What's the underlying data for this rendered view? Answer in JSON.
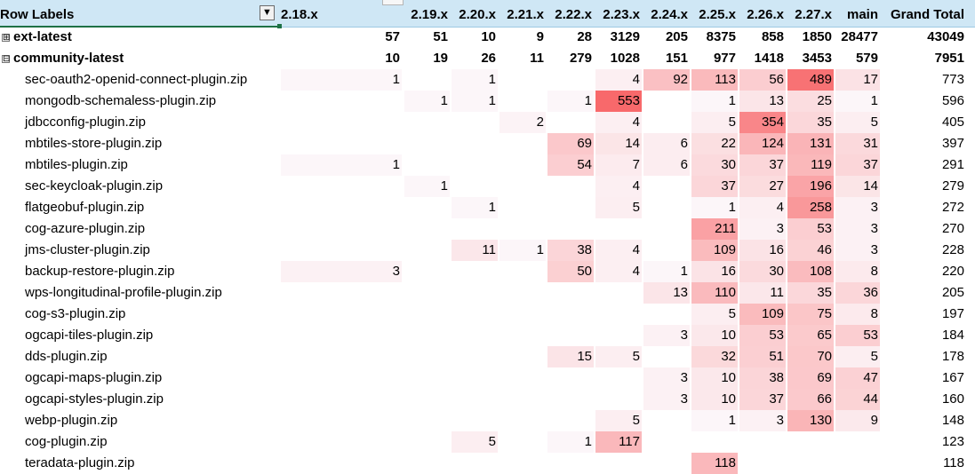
{
  "header": {
    "row_labels": "Row Labels",
    "filter_icon": "filter-sort-icon",
    "columns": [
      "2.18.x",
      "2.19.x",
      "2.20.x",
      "2.21.x",
      "2.22.x",
      "2.23.x",
      "2.24.x",
      "2.25.x",
      "2.26.x",
      "2.27.x",
      "main",
      "Grand Total"
    ]
  },
  "groups": [
    {
      "label": "ext-latest",
      "expander": "⊞",
      "values": [
        "57",
        "51",
        "10",
        "9",
        "28",
        "3129",
        "205",
        "8375",
        "858",
        "1850",
        "28477",
        "43049"
      ]
    },
    {
      "label": "community-latest",
      "expander": "⊟",
      "values": [
        "10",
        "19",
        "26",
        "11",
        "279",
        "1028",
        "151",
        "977",
        "1418",
        "3453",
        "579",
        "7951"
      ]
    }
  ],
  "rows": [
    {
      "label": "sec-oauth2-openid-connect-plugin.zip",
      "values": [
        "1",
        "",
        "1",
        "",
        "",
        "4",
        "92",
        "113",
        "56",
        "489",
        "17",
        "773"
      ]
    },
    {
      "label": "mongodb-schemaless-plugin.zip",
      "values": [
        "",
        "1",
        "1",
        "",
        "1",
        "553",
        "",
        "1",
        "13",
        "25",
        "1",
        "596"
      ]
    },
    {
      "label": "jdbcconfig-plugin.zip",
      "values": [
        "",
        "",
        "",
        "2",
        "",
        "4",
        "",
        "5",
        "354",
        "35",
        "5",
        "405"
      ]
    },
    {
      "label": "mbtiles-store-plugin.zip",
      "values": [
        "",
        "",
        "",
        "",
        "69",
        "14",
        "6",
        "22",
        "124",
        "131",
        "31",
        "397"
      ]
    },
    {
      "label": "mbtiles-plugin.zip",
      "values": [
        "1",
        "",
        "",
        "",
        "54",
        "7",
        "6",
        "30",
        "37",
        "119",
        "37",
        "291"
      ]
    },
    {
      "label": "sec-keycloak-plugin.zip",
      "values": [
        "",
        "1",
        "",
        "",
        "",
        "4",
        "",
        "37",
        "27",
        "196",
        "14",
        "279"
      ]
    },
    {
      "label": "flatgeobuf-plugin.zip",
      "values": [
        "",
        "",
        "1",
        "",
        "",
        "5",
        "",
        "1",
        "4",
        "258",
        "3",
        "272"
      ]
    },
    {
      "label": "cog-azure-plugin.zip",
      "values": [
        "",
        "",
        "",
        "",
        "",
        "",
        "",
        "211",
        "3",
        "53",
        "3",
        "270"
      ]
    },
    {
      "label": "jms-cluster-plugin.zip",
      "values": [
        "",
        "",
        "11",
        "1",
        "38",
        "4",
        "",
        "109",
        "16",
        "46",
        "3",
        "228"
      ]
    },
    {
      "label": "backup-restore-plugin.zip",
      "values": [
        "3",
        "",
        "",
        "",
        "50",
        "4",
        "1",
        "16",
        "30",
        "108",
        "8",
        "220"
      ]
    },
    {
      "label": "wps-longitudinal-profile-plugin.zip",
      "values": [
        "",
        "",
        "",
        "",
        "",
        "",
        "13",
        "110",
        "11",
        "35",
        "36",
        "205"
      ]
    },
    {
      "label": "cog-s3-plugin.zip",
      "values": [
        "",
        "",
        "",
        "",
        "",
        "",
        "",
        "5",
        "109",
        "75",
        "8",
        "197"
      ]
    },
    {
      "label": "ogcapi-tiles-plugin.zip",
      "values": [
        "",
        "",
        "",
        "",
        "",
        "",
        "3",
        "10",
        "53",
        "65",
        "53",
        "184"
      ]
    },
    {
      "label": "dds-plugin.zip",
      "values": [
        "",
        "",
        "",
        "",
        "15",
        "5",
        "",
        "32",
        "51",
        "70",
        "5",
        "178"
      ]
    },
    {
      "label": "ogcapi-maps-plugin.zip",
      "values": [
        "",
        "",
        "",
        "",
        "",
        "",
        "3",
        "10",
        "38",
        "69",
        "47",
        "167"
      ]
    },
    {
      "label": "ogcapi-styles-plugin.zip",
      "values": [
        "",
        "",
        "",
        "",
        "",
        "",
        "3",
        "10",
        "37",
        "66",
        "44",
        "160"
      ]
    },
    {
      "label": "webp-plugin.zip",
      "values": [
        "",
        "",
        "",
        "",
        "",
        "5",
        "",
        "1",
        "3",
        "130",
        "9",
        "148"
      ]
    },
    {
      "label": "cog-plugin.zip",
      "values": [
        "",
        "",
        "5",
        "",
        "1",
        "117",
        "",
        "",
        "",
        "",
        "",
        "123"
      ]
    },
    {
      "label": "teradata-plugin.zip",
      "values": [
        "",
        "",
        "",
        "",
        "",
        "",
        "",
        "118",
        "",
        "",
        "",
        "118"
      ]
    }
  ],
  "heat_colors": {
    "max": "#f8696b",
    "min": "#fcfcff"
  }
}
